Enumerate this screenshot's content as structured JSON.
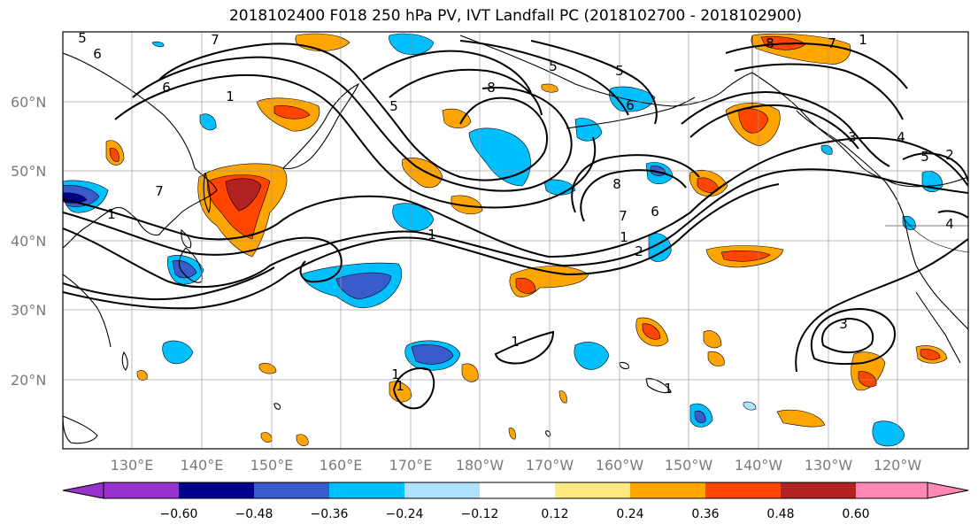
{
  "title": "2018102400 F018 250 hPa PV, IVT Landfall PC (2018102700 - 2018102900)",
  "latitude_labels": [
    "60°N",
    "50°N",
    "40°N",
    "30°N",
    "20°N"
  ],
  "longitude_labels": [
    "130°E",
    "140°E",
    "150°E",
    "160°E",
    "170°E",
    "180°W",
    "170°W",
    "160°W",
    "150°W",
    "140°W",
    "130°W",
    "120°W"
  ],
  "contour_labels": [
    "5",
    "6",
    "7",
    "6",
    "1",
    "5",
    "7",
    "8",
    "5",
    "5",
    "6",
    "8",
    "1",
    "7",
    "1",
    "8",
    "7",
    "6",
    "1",
    "2",
    "1",
    "1",
    "3",
    "1",
    "3",
    "4",
    "5",
    "2",
    "4",
    "1",
    "1"
  ],
  "colorbar": {
    "tick_labels": [
      "−0.60",
      "−0.48",
      "−0.36",
      "−0.24",
      "−0.12",
      "0.12",
      "0.24",
      "0.36",
      "0.48",
      "0.60"
    ],
    "colors": [
      "#9932cc",
      "#00008b",
      "#3a5bcc",
      "#00bfff",
      "#b0e2ff",
      "#ffffff",
      "#ffe980",
      "#ffa500",
      "#ff4500",
      "#b22222",
      "#ff88b4"
    ]
  }
}
